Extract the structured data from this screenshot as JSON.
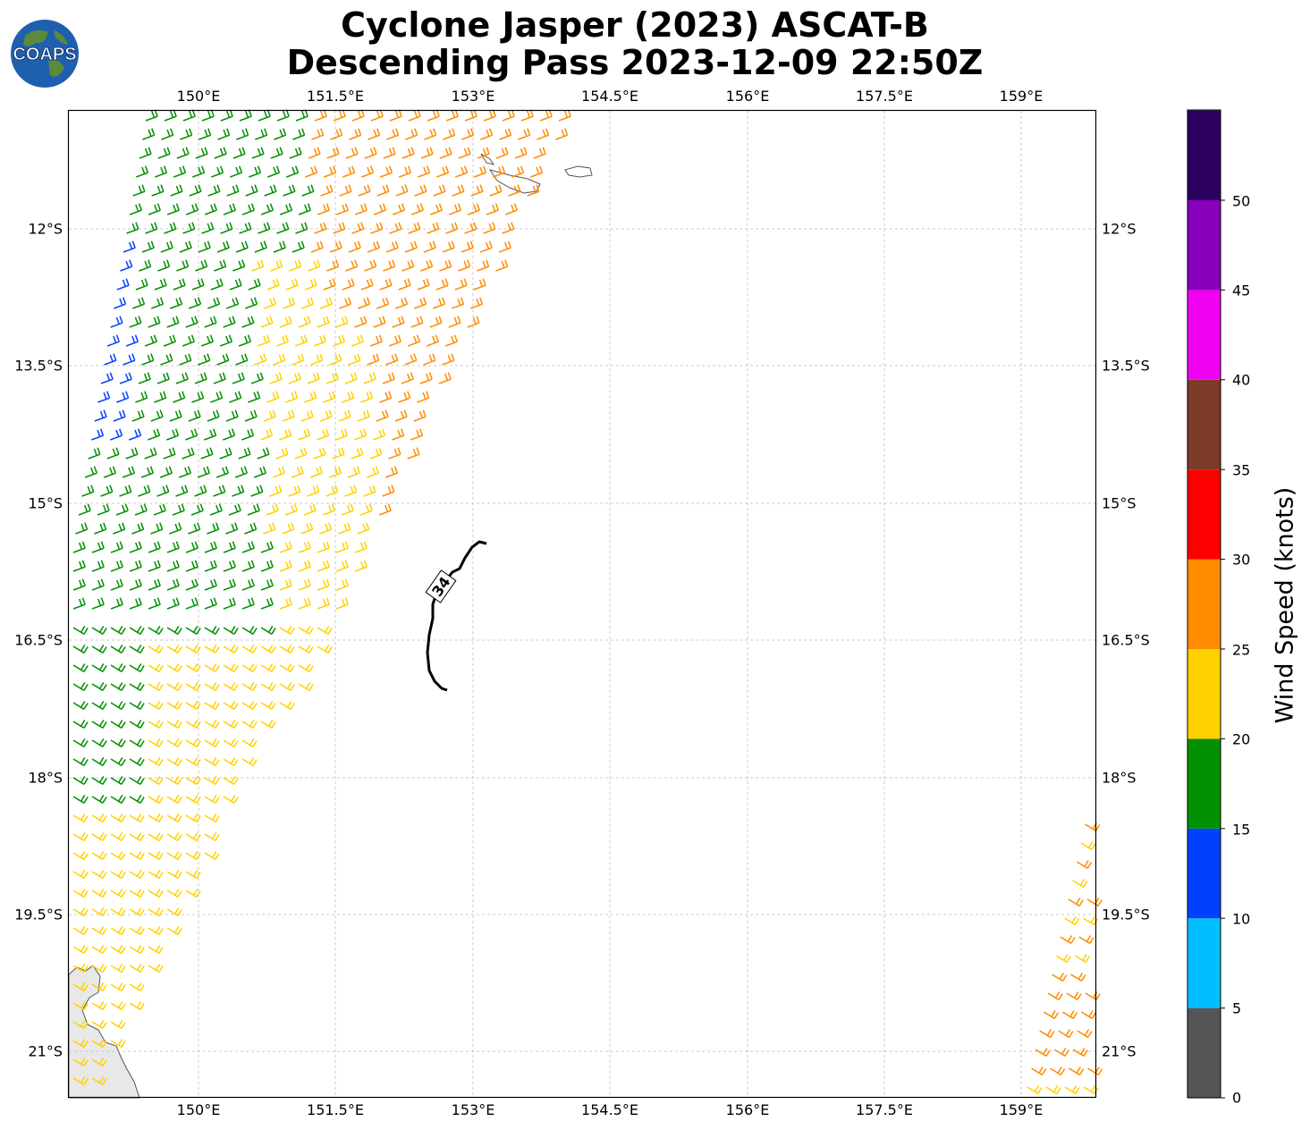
{
  "title_line1": "Cyclone Jasper (2023) ASCAT-B",
  "title_line2": "Descending Pass 2023-12-09 22:50Z",
  "logo": {
    "text": "COAPS"
  },
  "lon_labels": [
    "150°E",
    "151.5°E",
    "153°E",
    "154.5°E",
    "156°E",
    "157.5°E",
    "159°E"
  ],
  "lat_labels": [
    "12°S",
    "13.5°S",
    "15°S",
    "16.5°S",
    "18°S",
    "19.5°S",
    "21°S"
  ],
  "contour_label": "34",
  "colorbar": {
    "title": "Wind Speed (knots)",
    "ticks": [
      "0",
      "5",
      "10",
      "15",
      "20",
      "25",
      "30",
      "35",
      "40",
      "45",
      "50"
    ],
    "colors": [
      "#555555",
      "#00bfff",
      "#0040ff",
      "#009000",
      "#ffd200",
      "#ff8c00",
      "#ff0000",
      "#7d3c28",
      "#f000f0",
      "#8800bb",
      "#2c0060"
    ]
  }
}
